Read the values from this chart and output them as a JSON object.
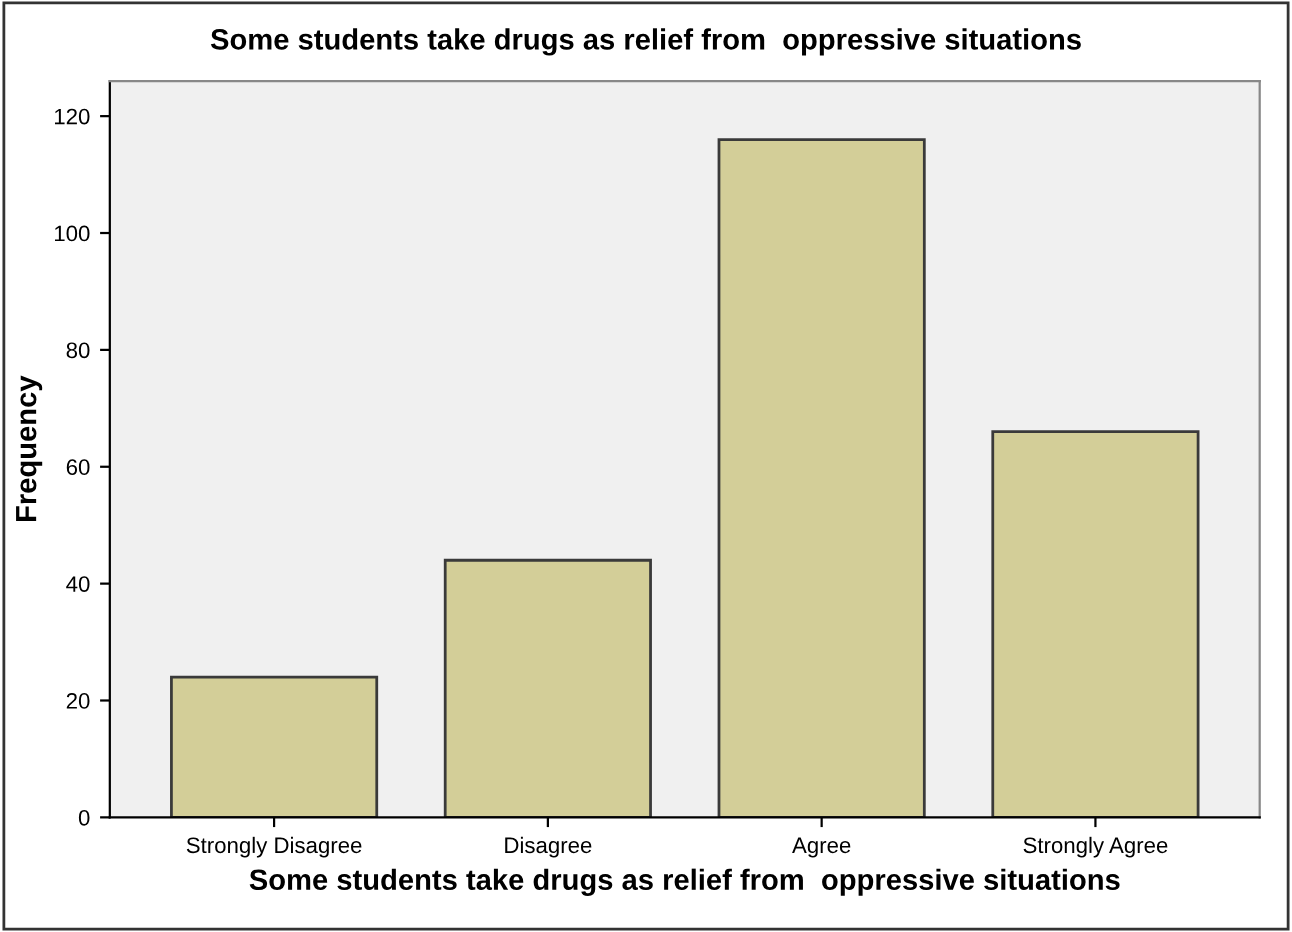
{
  "chart_data": {
    "type": "bar",
    "title": "Some students take drugs as relief from  oppressive situations",
    "xlabel": "Some students take drugs as relief from  oppressive situations",
    "ylabel": "Frequency",
    "categories": [
      "Strongly Disagree",
      "Disagree",
      "Agree",
      "Strongly Agree"
    ],
    "values": [
      24,
      44,
      116,
      66
    ],
    "color": "#d3ce98",
    "ylim": [
      0,
      126
    ],
    "yticks": [
      0,
      20,
      40,
      60,
      80,
      100,
      120
    ],
    "grid": false
  }
}
